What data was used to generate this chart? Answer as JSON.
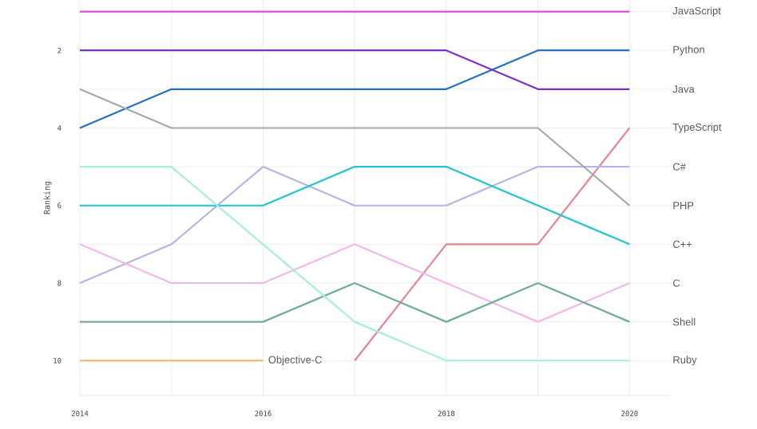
{
  "chart_data": {
    "type": "line",
    "ylabel": "Ranking",
    "x": [
      2014,
      2015,
      2016,
      2017,
      2018,
      2019,
      2020
    ],
    "xlim": [
      2014,
      2020.45
    ],
    "ylim": [
      10.9,
      0.7
    ],
    "xticks": [
      2014,
      {
        "value": 2015,
        "label": null
      },
      2016,
      {
        "value": 2017,
        "label": null
      },
      2018,
      {
        "value": 2019,
        "label": null
      },
      2020
    ],
    "yticks": [
      {
        "value": 1,
        "label": null
      },
      2,
      {
        "value": 3,
        "label": null
      },
      4,
      {
        "value": 5,
        "label": null
      },
      6,
      {
        "value": 7,
        "label": null
      },
      8,
      {
        "value": 9,
        "label": null
      },
      10
    ],
    "grid": true,
    "marker": "none",
    "line_style": "solid",
    "series": [
      {
        "name": "JavaScript",
        "color": "#d94fd6",
        "values": [
          1,
          1,
          1,
          1,
          1,
          1,
          1
        ]
      },
      {
        "name": "Python",
        "color": "#1f72c4",
        "values": [
          4,
          3,
          3,
          3,
          3,
          2,
          2
        ]
      },
      {
        "name": "Java",
        "color": "#7b2fc9",
        "values": [
          2,
          2,
          2,
          2,
          2,
          3,
          3
        ]
      },
      {
        "name": "TypeScript",
        "color": "#e8848f",
        "values": [
          null,
          null,
          null,
          10,
          7,
          7,
          4
        ]
      },
      {
        "name": "C#",
        "color": "#b8b4e6",
        "values": [
          8,
          7,
          5,
          6,
          6,
          5,
          5
        ]
      },
      {
        "name": "PHP",
        "color": "#a0aab5",
        "values": [
          3,
          4,
          4,
          4,
          4,
          4,
          6
        ]
      },
      {
        "name": "C++",
        "color": "#20c4cf",
        "values": [
          6,
          6,
          6,
          5,
          5,
          6,
          7
        ]
      },
      {
        "name": "C",
        "color": "#f2b8ec",
        "values": [
          7,
          8,
          8,
          7,
          8,
          9,
          8
        ]
      },
      {
        "name": "Shell",
        "color": "#6fae94",
        "values": [
          9,
          9,
          9,
          8,
          9,
          8,
          9
        ]
      },
      {
        "name": "Ruby",
        "color": "#a8efd8",
        "values": [
          5,
          5,
          7,
          9,
          10,
          10,
          10
        ]
      },
      {
        "name": "Objective-C",
        "color": "#f0b060",
        "values": [
          10,
          10,
          10,
          null,
          null,
          null,
          null
        ]
      }
    ]
  }
}
